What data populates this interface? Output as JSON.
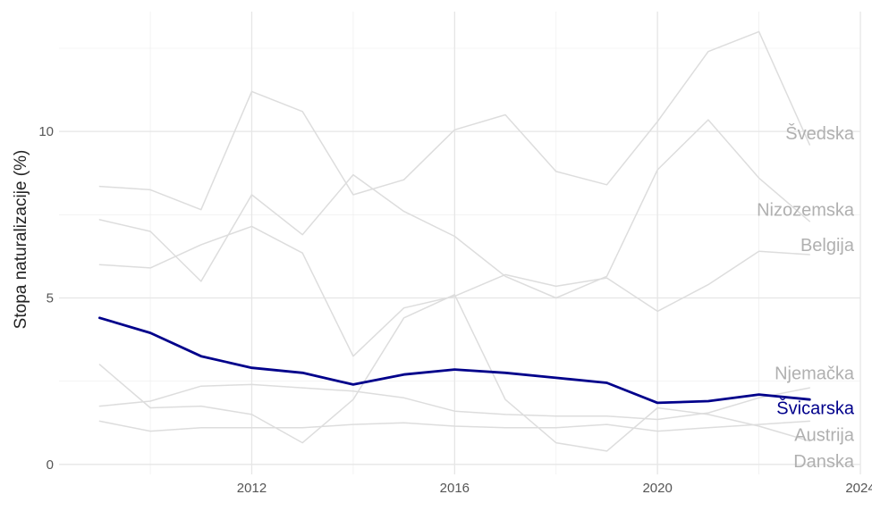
{
  "chart_data": {
    "type": "line",
    "title": "",
    "xlabel": "",
    "ylabel": "Stopa naturalizacije (%)",
    "xlim": [
      2008.2,
      2024
    ],
    "ylim": [
      -0.3,
      13.6
    ],
    "x_ticks": [
      2012,
      2016,
      2020,
      2024
    ],
    "y_ticks": [
      0,
      5,
      10
    ],
    "grid": true,
    "legend": "direct labels at line ends",
    "highlight_color": "#00008b",
    "muted_color": "#dddddd",
    "muted_label_color": "#b0b0b0",
    "x": [
      2009,
      2010,
      2011,
      2012,
      2013,
      2014,
      2015,
      2016,
      2017,
      2018,
      2019,
      2020,
      2021,
      2022,
      2023
    ],
    "series": [
      {
        "name": "Švedska",
        "highlight": false,
        "values": [
          8.35,
          8.25,
          7.65,
          11.2,
          10.6,
          8.1,
          8.55,
          10.05,
          10.5,
          8.8,
          8.4,
          10.3,
          12.4,
          13.0,
          9.6
        ]
      },
      {
        "name": "Nizozemska",
        "highlight": false,
        "values": [
          7.35,
          7.0,
          5.5,
          8.1,
          6.9,
          8.7,
          7.6,
          6.85,
          5.65,
          5.0,
          5.65,
          8.85,
          10.35,
          8.6,
          7.3
        ]
      },
      {
        "name": "Belgija",
        "highlight": false,
        "values": [
          6.0,
          5.9,
          6.6,
          7.15,
          6.35,
          3.25,
          4.7,
          5.05,
          5.7,
          5.35,
          5.6,
          4.6,
          5.4,
          6.4,
          6.3
        ]
      },
      {
        "name": "Njemačka",
        "highlight": false,
        "values": [
          1.75,
          1.9,
          2.35,
          2.4,
          2.3,
          2.2,
          2.0,
          1.6,
          1.5,
          1.45,
          1.45,
          1.35,
          1.55,
          2.0,
          2.3
        ]
      },
      {
        "name": "Švicarska",
        "highlight": true,
        "values": [
          4.4,
          3.95,
          3.25,
          2.9,
          2.75,
          2.4,
          2.7,
          2.85,
          2.75,
          2.6,
          2.45,
          1.85,
          1.9,
          2.1,
          1.95
        ]
      },
      {
        "name": "Austrija",
        "highlight": false,
        "values": [
          1.3,
          1.0,
          1.1,
          1.1,
          1.1,
          1.2,
          1.25,
          1.15,
          1.1,
          1.1,
          1.2,
          1.0,
          1.1,
          1.2,
          1.3
        ]
      },
      {
        "name": "Danska",
        "highlight": false,
        "values": [
          3.0,
          1.7,
          1.75,
          1.5,
          0.65,
          1.95,
          4.4,
          5.1,
          1.95,
          0.65,
          0.4,
          1.7,
          1.5,
          1.15,
          0.7
        ]
      }
    ],
    "labels": [
      {
        "name": "Švedska",
        "y": 9.95
      },
      {
        "name": "Nizozemska",
        "y": 7.65
      },
      {
        "name": "Belgija",
        "y": 6.6
      },
      {
        "name": "Njemačka",
        "y": 2.75
      },
      {
        "name": "Švicarska",
        "y": 1.7
      },
      {
        "name": "Austrija",
        "y": 0.9
      },
      {
        "name": "Danska",
        "y": 0.1
      }
    ]
  }
}
